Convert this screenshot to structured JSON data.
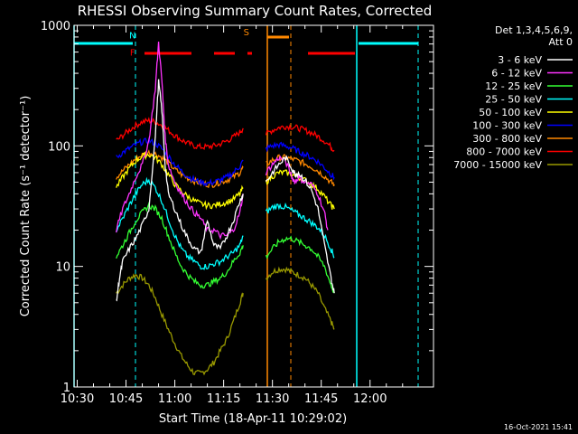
{
  "chart_data": {
    "type": "line",
    "title": "RHESSI Observing Summary Count Rates, Corrected",
    "xlabel": "Start Time (18-Apr-11 10:29:02)",
    "ylabel": "Corrected Count Rate (s⁻¹ detector⁻¹)",
    "yscale": "log",
    "ylim": [
      1,
      1000
    ],
    "xlim_minutes": [
      29.03,
      139.5
    ],
    "x_ticks": [
      {
        "minutes": 30,
        "label": "10:30"
      },
      {
        "minutes": 45,
        "label": "10:45"
      },
      {
        "minutes": 60,
        "label": "11:00"
      },
      {
        "minutes": 75,
        "label": "11:15"
      },
      {
        "minutes": 90,
        "label": "11:30"
      },
      {
        "minutes": 105,
        "label": "11:45"
      },
      {
        "minutes": 120,
        "label": "12:00"
      }
    ],
    "y_ticks": [
      {
        "value": 1,
        "label": "1"
      },
      {
        "value": 10,
        "label": "10"
      },
      {
        "value": 100,
        "label": "100"
      },
      {
        "value": 1000,
        "label": "1000"
      }
    ],
    "legend_header": [
      "Det 1,3,4,5,6,9,",
      "Att 0"
    ],
    "legend_position": "right",
    "series": [
      {
        "name": "3 - 6 keV",
        "color": "#ffffff",
        "segments": [
          {
            "x": [
              42,
              43,
              44,
              46,
              48,
              50,
              52,
              54,
              55,
              56,
              57,
              58,
              60,
              62,
              64,
              66,
              68,
              70,
              72,
              74,
              76,
              78,
              80,
              81
            ],
            "y": [
              5,
              8,
              11,
              14,
              17,
              22,
              30,
              120,
              340,
              200,
              70,
              40,
              30,
              22,
              17,
              14,
              13,
              24,
              15,
              14,
              18,
              24,
              35,
              40
            ]
          },
          {
            "x": [
              88,
              90,
              92,
              94,
              96,
              97,
              98,
              100,
              102,
              104,
              106,
              108,
              109
            ],
            "y": [
              50,
              60,
              70,
              80,
              65,
              58,
              60,
              52,
              43,
              30,
              15,
              8,
              6
            ]
          }
        ]
      },
      {
        "name": "6 - 12 keV",
        "color": "#ff33ff",
        "segments": [
          {
            "x": [
              42,
              44,
              46,
              48,
              50,
              52,
              54,
              55,
              56,
              57,
              58,
              60,
              62,
              64,
              66,
              68,
              70,
              72,
              74,
              76,
              78,
              80,
              81
            ],
            "y": [
              20,
              30,
              40,
              55,
              70,
              110,
              300,
              720,
              350,
              120,
              70,
              50,
              40,
              33,
              28,
              25,
              20,
              20,
              18,
              18,
              20,
              28,
              40
            ]
          },
          {
            "x": [
              88,
              90,
              92,
              94,
              96,
              97,
              98,
              100,
              102,
              104,
              106,
              107
            ],
            "y": [
              60,
              70,
              80,
              75,
              55,
              50,
              55,
              50,
              48,
              40,
              28,
              20
            ]
          }
        ]
      },
      {
        "name": "12 - 25 keV",
        "color": "#33ff33",
        "segments": [
          {
            "x": [
              42,
              44,
              46,
              48,
              50,
              52,
              54,
              56,
              58,
              60,
              62,
              64,
              66,
              68,
              70,
              72,
              74,
              76,
              78,
              80,
              81
            ],
            "y": [
              12,
              15,
              19,
              24,
              28,
              32,
              30,
              25,
              18,
              13,
              10,
              8.5,
              7.5,
              7,
              7,
              7.5,
              8,
              9,
              11,
              13,
              15
            ]
          },
          {
            "x": [
              88,
              90,
              92,
              94,
              96,
              98,
              100,
              102,
              104,
              106,
              108,
              109
            ],
            "y": [
              12,
              14,
              16,
              17,
              17,
              16,
              15,
              14,
              12,
              10,
              7,
              6
            ]
          }
        ]
      },
      {
        "name": "25 - 50 keV",
        "color": "#00ffff",
        "segments": [
          {
            "x": [
              42,
              44,
              46,
              48,
              50,
              52,
              54,
              56,
              58,
              60,
              62,
              64,
              66,
              68,
              70,
              72,
              74,
              76,
              78,
              80,
              81
            ],
            "y": [
              20,
              25,
              32,
              40,
              48,
              52,
              45,
              35,
              25,
              18,
              14,
              12,
              11,
              10,
              10,
              10.5,
              11,
              12,
              13,
              15,
              18
            ]
          },
          {
            "x": [
              88,
              90,
              92,
              94,
              96,
              98,
              100,
              102,
              104,
              106,
              108,
              109
            ],
            "y": [
              28,
              31,
              32,
              31,
              29,
              27,
              25,
              23,
              21,
              18,
              14,
              12
            ]
          }
        ]
      },
      {
        "name": "50 - 100 keV",
        "color": "#ffff00",
        "segments": [
          {
            "x": [
              42,
              44,
              46,
              48,
              50,
              52,
              54,
              56,
              58,
              60,
              62,
              64,
              66,
              68,
              70,
              72,
              74,
              76,
              78,
              80,
              81
            ],
            "y": [
              45,
              55,
              65,
              75,
              82,
              85,
              80,
              70,
              58,
              48,
              42,
              38,
              35,
              33,
              32,
              32,
              33,
              34,
              36,
              40,
              45
            ]
          },
          {
            "x": [
              88,
              90,
              92,
              94,
              96,
              98,
              100,
              102,
              104,
              106,
              108,
              109
            ],
            "y": [
              50,
              56,
              60,
              60,
              58,
              55,
              52,
              48,
              44,
              38,
              32,
              30
            ]
          }
        ]
      },
      {
        "name": "100 - 300 keV",
        "color": "#0000ff",
        "segments": [
          {
            "x": [
              42,
              44,
              46,
              48,
              50,
              52,
              54,
              56,
              58,
              60,
              62,
              64,
              66,
              68,
              70,
              72,
              74,
              76,
              78,
              80,
              81
            ],
            "y": [
              80,
              88,
              95,
              102,
              108,
              110,
              105,
              95,
              82,
              70,
              62,
              56,
              52,
              50,
              49,
              50,
              52,
              55,
              60,
              68,
              75
            ]
          },
          {
            "x": [
              88,
              90,
              92,
              94,
              96,
              98,
              100,
              102,
              104,
              106,
              108,
              109
            ],
            "y": [
              95,
              100,
              102,
              100,
              96,
              90,
              85,
              80,
              74,
              66,
              58,
              55
            ]
          }
        ]
      },
      {
        "name": "300 - 800 keV",
        "color": "#ff8800",
        "segments": [
          {
            "x": [
              42,
              44,
              46,
              48,
              50,
              52,
              54,
              56,
              58,
              60,
              62,
              64,
              66,
              68,
              70,
              72,
              74,
              76,
              78,
              80,
              81
            ],
            "y": [
              55,
              62,
              70,
              78,
              84,
              88,
              86,
              80,
              72,
              64,
              58,
              54,
              51,
              49,
              48,
              48,
              50,
              52,
              55,
              60,
              66
            ]
          },
          {
            "x": [
              88,
              90,
              92,
              94,
              96,
              98,
              100,
              102,
              104,
              106,
              108,
              109
            ],
            "y": [
              70,
              76,
              80,
              80,
              78,
              75,
              71,
              67,
              62,
              56,
              50,
              48
            ]
          }
        ]
      },
      {
        "name": "800 - 7000 keV",
        "color": "#ff0000",
        "segments": [
          {
            "x": [
              42,
              44,
              46,
              48,
              50,
              52,
              54,
              56,
              58,
              60,
              62,
              64,
              66,
              68,
              70,
              72,
              74,
              76,
              78,
              80,
              81
            ],
            "y": [
              110,
              122,
              135,
              148,
              158,
              162,
              158,
              148,
              135,
              122,
              112,
              105,
              100,
              98,
              98,
              100,
              104,
              110,
              118,
              130,
              140
            ]
          },
          {
            "x": [
              88,
              90,
              92,
              94,
              96,
              98,
              100,
              102,
              104,
              106,
              108,
              109
            ],
            "y": [
              125,
              135,
              142,
              145,
              144,
              140,
              135,
              128,
              120,
              110,
              98,
              92
            ]
          }
        ]
      },
      {
        "name": "7000 - 15000 keV",
        "color": "#999900",
        "segments": [
          {
            "x": [
              42,
              44,
              46,
              48,
              50,
              52,
              54,
              56,
              58,
              60,
              62,
              64,
              66,
              68,
              70,
              72,
              74,
              76,
              78,
              80,
              81
            ],
            "y": [
              6,
              7,
              8,
              8.5,
              8,
              7,
              5.5,
              4,
              3,
              2.3,
              1.8,
              1.5,
              1.3,
              1.3,
              1.4,
              1.6,
              2,
              2.5,
              3.5,
              5,
              6
            ]
          },
          {
            "x": [
              88,
              90,
              92,
              94,
              96,
              98,
              100,
              102,
              104,
              106,
              108,
              109
            ],
            "y": [
              8,
              9,
              9.5,
              9.5,
              9,
              8.5,
              8,
              7,
              6,
              4.5,
              3.5,
              3
            ]
          }
        ]
      }
    ],
    "annotations": [
      {
        "label": "N",
        "color": "#00ffff",
        "x_minutes": 47,
        "y_value": 780
      },
      {
        "label": "F",
        "color": "#ff0000",
        "x_minutes": 47,
        "y_value": 560
      },
      {
        "label": "S",
        "color": "#ff8800",
        "x_minutes": 82,
        "y_value": 830
      }
    ],
    "footer_timestamp": "16-Oct-2021 15:41"
  }
}
